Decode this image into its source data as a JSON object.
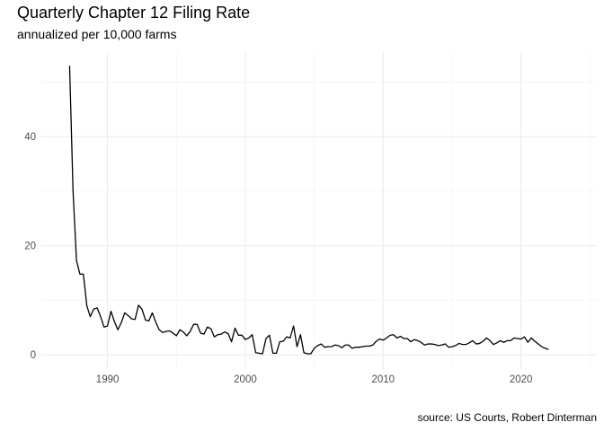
{
  "chart_data": {
    "type": "line",
    "title": "Quarterly Chapter 12 Filing Rate",
    "subtitle": "annualized per 10,000 farms",
    "caption": "source: US Courts, Robert Dinterman",
    "xlabel": "",
    "ylabel": "",
    "xlim": [
      1985.2,
      2025.5
    ],
    "ylim": [
      -2.6,
      55.5
    ],
    "x_ticks": [
      1990,
      2000,
      2010,
      2020
    ],
    "y_ticks": [
      0,
      20,
      40
    ],
    "grid": true,
    "legend": "none",
    "line_color": "#000000",
    "series": [
      {
        "x": [
          1987.25,
          1987.5,
          1987.75,
          1988.0,
          1988.25,
          1988.5,
          1988.75,
          1989.0,
          1989.25,
          1989.5,
          1989.75,
          1990.0,
          1990.25,
          1990.5,
          1990.75,
          1991.0,
          1991.25,
          1991.5,
          1991.75,
          1992.0,
          1992.25,
          1992.5,
          1992.75,
          1993.0,
          1993.25,
          1993.5,
          1993.75,
          1994.0,
          1994.25,
          1994.5,
          1994.75,
          1995.0,
          1995.25,
          1995.5,
          1995.75,
          1996.0,
          1996.25,
          1996.5,
          1996.75,
          1997.0,
          1997.25,
          1997.5,
          1997.75,
          1998.0,
          1998.25,
          1998.5,
          1998.75,
          1999.0,
          1999.25,
          1999.5,
          1999.75,
          2000.0,
          2000.25,
          2000.5,
          2000.75,
          2001.0,
          2001.25,
          2001.5,
          2001.75,
          2002.0,
          2002.25,
          2002.5,
          2002.75,
          2003.0,
          2003.25,
          2003.5,
          2003.75,
          2004.0,
          2004.25,
          2004.5,
          2004.75,
          2005.0,
          2005.25,
          2005.5,
          2005.75,
          2006.0,
          2006.25,
          2006.5,
          2006.75,
          2007.0,
          2007.25,
          2007.5,
          2007.75,
          2008.0,
          2008.25,
          2008.5,
          2008.75,
          2009.0,
          2009.25,
          2009.5,
          2009.75,
          2010.0,
          2010.25,
          2010.5,
          2010.75,
          2011.0,
          2011.25,
          2011.5,
          2011.75,
          2012.0,
          2012.25,
          2012.5,
          2012.75,
          2013.0,
          2013.25,
          2013.5,
          2013.75,
          2014.0,
          2014.25,
          2014.5,
          2014.75,
          2015.0,
          2015.25,
          2015.5,
          2015.75,
          2016.0,
          2016.25,
          2016.5,
          2016.75,
          2017.0,
          2017.25,
          2017.5,
          2017.75,
          2018.0,
          2018.25,
          2018.5,
          2018.75,
          2019.0,
          2019.25,
          2019.5,
          2019.75,
          2020.0,
          2020.25,
          2020.5,
          2020.75,
          2021.0,
          2021.25,
          2021.5,
          2021.75,
          2022.0
        ],
        "y": [
          53.0,
          30.0,
          17.3,
          14.8,
          14.8,
          9.0,
          7.0,
          8.4,
          8.6,
          7.0,
          5.1,
          5.3,
          8.0,
          6.1,
          4.6,
          5.9,
          7.7,
          7.2,
          6.6,
          6.5,
          9.1,
          8.4,
          6.4,
          6.2,
          7.7,
          6.0,
          4.6,
          4.1,
          4.3,
          4.4,
          4.0,
          3.5,
          4.6,
          4.2,
          3.5,
          4.3,
          5.6,
          5.6,
          4.0,
          3.8,
          5.1,
          4.8,
          3.3,
          3.7,
          3.8,
          4.2,
          3.9,
          2.4,
          4.9,
          3.6,
          3.6,
          2.8,
          3.1,
          3.7,
          0.4,
          0.3,
          0.2,
          3.0,
          3.6,
          0.3,
          0.3,
          2.4,
          2.5,
          3.3,
          3.1,
          5.3,
          1.5,
          3.7,
          0.4,
          0.2,
          0.2,
          1.2,
          1.7,
          2.0,
          1.4,
          1.5,
          1.5,
          1.8,
          1.7,
          1.3,
          1.8,
          1.8,
          1.2,
          1.4,
          1.4,
          1.5,
          1.6,
          1.6,
          1.8,
          2.5,
          2.9,
          2.7,
          3.1,
          3.6,
          3.7,
          3.1,
          3.4,
          3.0,
          3.0,
          2.4,
          2.8,
          2.6,
          2.3,
          1.8,
          2.0,
          2.0,
          1.9,
          1.7,
          1.8,
          2.0,
          1.4,
          1.5,
          1.7,
          2.1,
          1.9,
          1.9,
          2.2,
          2.6,
          2.0,
          2.1,
          2.5,
          3.1,
          2.6,
          1.9,
          2.2,
          2.6,
          2.3,
          2.6,
          2.6,
          3.1,
          3.0,
          2.9,
          3.3,
          2.3,
          3.1,
          2.5,
          2.0,
          1.5,
          1.2,
          1.0
        ]
      }
    ]
  }
}
